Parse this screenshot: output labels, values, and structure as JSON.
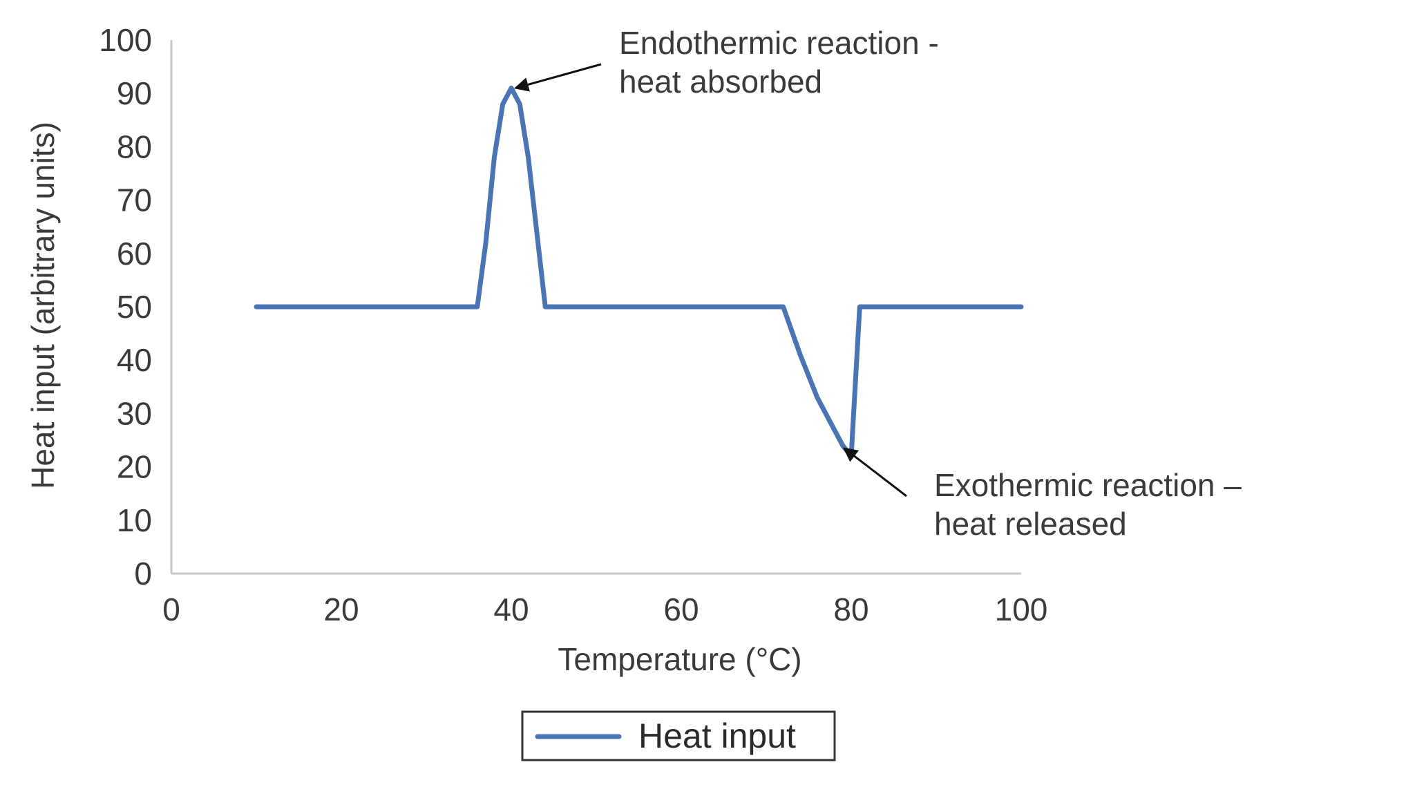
{
  "chart_data": {
    "type": "line",
    "xlabel": "Temperature (°C)",
    "ylabel": "Heat input (arbitrary units)",
    "xlim": [
      0,
      100
    ],
    "ylim": [
      0,
      100
    ],
    "xticks": [
      0,
      20,
      40,
      60,
      80,
      100
    ],
    "yticks": [
      0,
      10,
      20,
      30,
      40,
      50,
      60,
      70,
      80,
      90,
      100
    ],
    "grid": false,
    "legend_placement": "bottom-center",
    "series": [
      {
        "name": "Heat input",
        "color": "#4a74b4",
        "x": [
          10,
          36,
          37,
          38,
          39,
          40,
          41,
          42,
          43,
          44,
          72,
          74,
          76,
          78,
          79,
          80,
          81,
          100
        ],
        "y": [
          50,
          50,
          62,
          78,
          88,
          91,
          88,
          78,
          64,
          50,
          50,
          41,
          33,
          27,
          24,
          22,
          50,
          50
        ]
      }
    ],
    "annotations": [
      {
        "id": "endothermic",
        "lines": [
          "Endothermic reaction -",
          "heat absorbed"
        ],
        "point": [
          40,
          91
        ]
      },
      {
        "id": "exothermic",
        "lines": [
          "Exothermic reaction –",
          "heat released"
        ],
        "point": [
          79,
          24
        ]
      }
    ]
  },
  "colors": {
    "axis": "#c8c8c8",
    "line": "#4a74b4",
    "arrow": "#111111",
    "legend_border": "#333333"
  }
}
